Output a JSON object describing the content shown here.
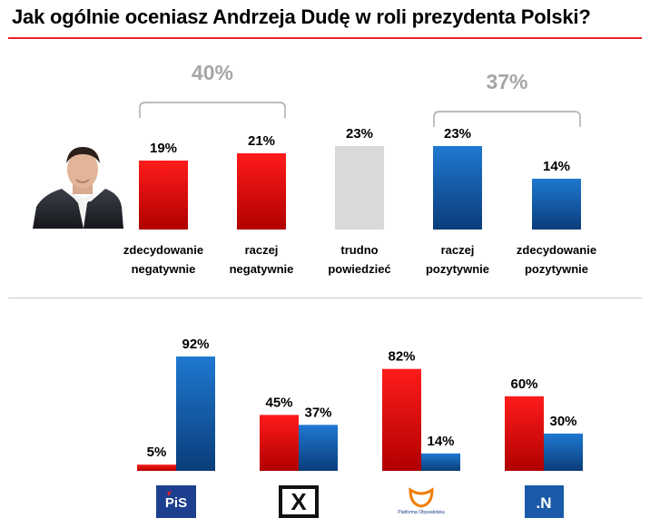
{
  "title": "Jak ogólnie oceniasz Andrzeja Dudę w roli prezydenta Polski?",
  "colors": {
    "accent": "#e8232c",
    "red_top": "#ff1b1b",
    "red_bottom": "#b00000",
    "blue_top": "#1f78d1",
    "blue_bottom": "#0a3d7a",
    "grey": "#d9d9d9",
    "group_label": "#a6a6a6"
  },
  "chart_data": [
    {
      "type": "bar",
      "title": "Jak ogólnie oceniasz Andrzeja Dudę w roli prezydenta Polski?",
      "categories": [
        [
          "zdecydowanie",
          "negatywnie"
        ],
        [
          "raczej",
          "negatywnie"
        ],
        [
          "trudno",
          "powiedzieć"
        ],
        [
          "raczej",
          "pozytywnie"
        ],
        [
          "zdecydowanie",
          "pozytywnie"
        ]
      ],
      "values": [
        19,
        21,
        23,
        23,
        14
      ],
      "value_labels": [
        "19%",
        "21%",
        "23%",
        "23%",
        "14%"
      ],
      "bar_colors": [
        "red",
        "red",
        "grey",
        "blue",
        "blue"
      ],
      "groups": [
        {
          "label": "40%",
          "from": 0,
          "to": 1
        },
        {
          "label": "37%",
          "from": 3,
          "to": 4
        }
      ],
      "ylim": [
        0,
        25
      ]
    },
    {
      "type": "bar",
      "categories": [
        "PiS",
        "Kukiz'15",
        "Platforma Obywatelska",
        "Nowoczesna"
      ],
      "logos": [
        {
          "text": "PiS"
        },
        {
          "text": "X"
        },
        {
          "text": "Platforma Obywatelska"
        },
        {
          "text": ".N"
        }
      ],
      "series": [
        {
          "name": "negatywnie",
          "color": "red",
          "values": [
            5,
            45,
            82,
            60
          ],
          "labels": [
            "5%",
            "45%",
            "82%",
            "60%"
          ]
        },
        {
          "name": "pozytywnie",
          "color": "blue",
          "values": [
            92,
            37,
            14,
            30
          ],
          "labels": [
            "92%",
            "37%",
            "14%",
            "30%"
          ]
        }
      ],
      "ylim": [
        0,
        100
      ]
    }
  ]
}
